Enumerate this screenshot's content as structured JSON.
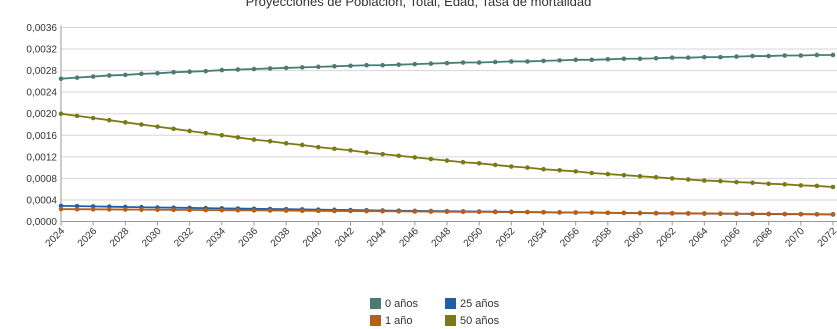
{
  "chart_data": {
    "type": "line",
    "title": "Proyecciones de Población, Total, Edad, Tasa de mortalidad",
    "x": [
      2024,
      2026,
      2028,
      2030,
      2032,
      2034,
      2036,
      2038,
      2040,
      2042,
      2044,
      2046,
      2048,
      2050,
      2052,
      2054,
      2056,
      2058,
      2060,
      2062,
      2064,
      2066,
      2068,
      2070,
      2072
    ],
    "xtick_labels": [
      "2024",
      "2026",
      "2028",
      "2030",
      "2032",
      "2034",
      "2036",
      "2038",
      "2040",
      "2042",
      "2044",
      "2046",
      "2048",
      "2050",
      "2052",
      "2054",
      "2056",
      "2058",
      "2060",
      "2062",
      "2064",
      "2066",
      "2068",
      "2070",
      "2072"
    ],
    "ylim": [
      0,
      0.0036
    ],
    "yticks": [
      0,
      0.0004,
      0.0008,
      0.0012,
      0.0016,
      0.002,
      0.0024,
      0.0028,
      0.0032,
      0.0036
    ],
    "ytick_labels": [
      "0,0000",
      "0,0004",
      "0,0008",
      "0,0012",
      "0,0016",
      "0,0020",
      "0,0024",
      "0,0028",
      "0,0032",
      "0,0036"
    ],
    "grid": true,
    "legend_position": "bottom",
    "series": [
      {
        "name": "0 años",
        "color": "#4a7c76",
        "x": [
          2024,
          2025,
          2026,
          2027,
          2028,
          2029,
          2030,
          2031,
          2032,
          2033,
          2034,
          2035,
          2036,
          2037,
          2038,
          2039,
          2040,
          2041,
          2042,
          2043,
          2044,
          2045,
          2046,
          2047,
          2048,
          2049,
          2050,
          2051,
          2052,
          2053,
          2054,
          2055,
          2056,
          2057,
          2058,
          2059,
          2060,
          2061,
          2062,
          2063,
          2064,
          2065,
          2066,
          2067,
          2068,
          2069,
          2070,
          2071,
          2072
        ],
        "values": [
          0.00265,
          0.00267,
          0.00269,
          0.00271,
          0.00272,
          0.00274,
          0.00275,
          0.00277,
          0.00278,
          0.00279,
          0.00281,
          0.00282,
          0.00283,
          0.00284,
          0.00285,
          0.00286,
          0.00287,
          0.00288,
          0.00289,
          0.0029,
          0.0029,
          0.00291,
          0.00292,
          0.00293,
          0.00294,
          0.00295,
          0.00295,
          0.00296,
          0.00297,
          0.00297,
          0.00298,
          0.00299,
          0.003,
          0.003,
          0.00301,
          0.00302,
          0.00302,
          0.00303,
          0.00304,
          0.00304,
          0.00305,
          0.00305,
          0.00306,
          0.00307,
          0.00307,
          0.00308,
          0.00308,
          0.00309,
          0.00309
        ]
      },
      {
        "name": "25 años",
        "color": "#1f5fa8",
        "x": [
          2024,
          2025,
          2026,
          2027,
          2028,
          2029,
          2030,
          2031,
          2032,
          2033,
          2034,
          2035,
          2036,
          2037,
          2038,
          2039,
          2040,
          2041,
          2042,
          2043,
          2044,
          2045,
          2046,
          2047,
          2048,
          2049,
          2050,
          2051,
          2052,
          2053,
          2054,
          2055,
          2056,
          2057,
          2058,
          2059,
          2060,
          2061,
          2062,
          2063,
          2064,
          2065,
          2066,
          2067,
          2068,
          2069,
          2070,
          2071,
          2072
        ],
        "values": [
          0.00029,
          0.000285,
          0.00028,
          0.000275,
          0.00027,
          0.000265,
          0.00026,
          0.000256,
          0.000252,
          0.000248,
          0.000244,
          0.00024,
          0.000236,
          0.000232,
          0.000228,
          0.000224,
          0.00022,
          0.000216,
          0.000212,
          0.000208,
          0.000204,
          0.0002,
          0.000197,
          0.000194,
          0.000191,
          0.000188,
          0.000185,
          0.000182,
          0.000179,
          0.000176,
          0.000173,
          0.00017,
          0.000167,
          0.000164,
          0.000161,
          0.000158,
          0.000155,
          0.000152,
          0.00015,
          0.000148,
          0.000146,
          0.000144,
          0.000142,
          0.00014,
          0.000138,
          0.000136,
          0.000134,
          0.000132,
          0.00013
        ]
      },
      {
        "name": "1 año",
        "color": "#b45f1a",
        "x": [
          2024,
          2025,
          2026,
          2027,
          2028,
          2029,
          2030,
          2031,
          2032,
          2033,
          2034,
          2035,
          2036,
          2037,
          2038,
          2039,
          2040,
          2041,
          2042,
          2043,
          2044,
          2045,
          2046,
          2047,
          2048,
          2049,
          2050,
          2051,
          2052,
          2053,
          2054,
          2055,
          2056,
          2057,
          2058,
          2059,
          2060,
          2061,
          2062,
          2063,
          2064,
          2065,
          2066,
          2067,
          2068,
          2069,
          2070,
          2071,
          2072
        ],
        "values": [
          0.00023,
          0.000228,
          0.000226,
          0.000224,
          0.000222,
          0.00022,
          0.000218,
          0.000216,
          0.000214,
          0.000212,
          0.00021,
          0.000208,
          0.000206,
          0.000204,
          0.000202,
          0.0002,
          0.000198,
          0.000196,
          0.000194,
          0.000192,
          0.00019,
          0.000188,
          0.000186,
          0.000184,
          0.000182,
          0.00018,
          0.000178,
          0.000176,
          0.000174,
          0.000172,
          0.00017,
          0.000168,
          0.000166,
          0.000164,
          0.000162,
          0.00016,
          0.000158,
          0.000156,
          0.000154,
          0.000152,
          0.00015,
          0.000148,
          0.000146,
          0.000144,
          0.000142,
          0.00014,
          0.000138,
          0.000136,
          0.000134
        ]
      },
      {
        "name": "50 años",
        "color": "#7a7a17",
        "x": [
          2024,
          2025,
          2026,
          2027,
          2028,
          2029,
          2030,
          2031,
          2032,
          2033,
          2034,
          2035,
          2036,
          2037,
          2038,
          2039,
          2040,
          2041,
          2042,
          2043,
          2044,
          2045,
          2046,
          2047,
          2048,
          2049,
          2050,
          2051,
          2052,
          2053,
          2054,
          2055,
          2056,
          2057,
          2058,
          2059,
          2060,
          2061,
          2062,
          2063,
          2064,
          2065,
          2066,
          2067,
          2068,
          2069,
          2070,
          2071,
          2072
        ],
        "values": [
          0.002,
          0.00196,
          0.00192,
          0.00188,
          0.00184,
          0.0018,
          0.00176,
          0.00172,
          0.00168,
          0.00164,
          0.0016,
          0.00156,
          0.00152,
          0.00149,
          0.00145,
          0.00142,
          0.00138,
          0.00135,
          0.00132,
          0.00128,
          0.00125,
          0.00122,
          0.00119,
          0.00116,
          0.00113,
          0.0011,
          0.00108,
          0.00105,
          0.00102,
          0.001,
          0.00097,
          0.00095,
          0.00093,
          0.0009,
          0.00088,
          0.00086,
          0.00084,
          0.00082,
          0.0008,
          0.00078,
          0.00076,
          0.00075,
          0.00073,
          0.00072,
          0.0007,
          0.00069,
          0.00067,
          0.00066,
          0.00064
        ]
      }
    ]
  }
}
